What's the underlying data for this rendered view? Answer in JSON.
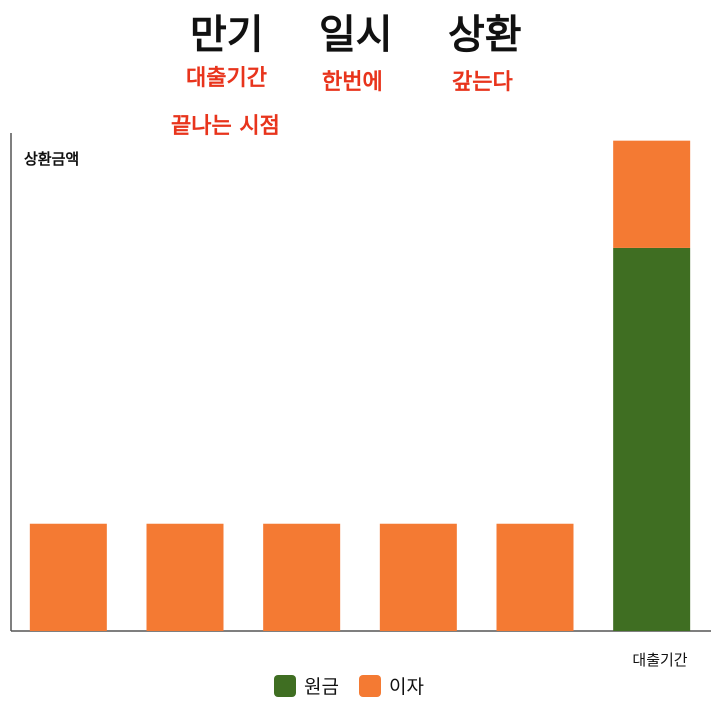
{
  "title_words": [
    "만기",
    "일시",
    "상환"
  ],
  "subtitle_lines": [
    {
      "text": "대출기간",
      "under": 0
    },
    {
      "text": "끝나는 시점",
      "under": 0
    },
    {
      "text": "한번에",
      "under": 1
    },
    {
      "text": "갚는다",
      "under": 2
    }
  ],
  "chart_data": {
    "type": "bar",
    "stacked": true,
    "ylabel": "상환금액",
    "xlabel": "대출기간",
    "categories": [
      "",
      "",
      "",
      "",
      "",
      ""
    ],
    "series": [
      {
        "name": "원금",
        "color": "#3f6e22",
        "values": [
          0,
          0,
          0,
          0,
          0,
          100
        ]
      },
      {
        "name": "이자",
        "color": "#f47a33",
        "values": [
          28,
          28,
          28,
          28,
          28,
          28
        ]
      }
    ],
    "ylim": [
      0,
      130
    ],
    "grid": false,
    "legend_position": "bottom"
  }
}
